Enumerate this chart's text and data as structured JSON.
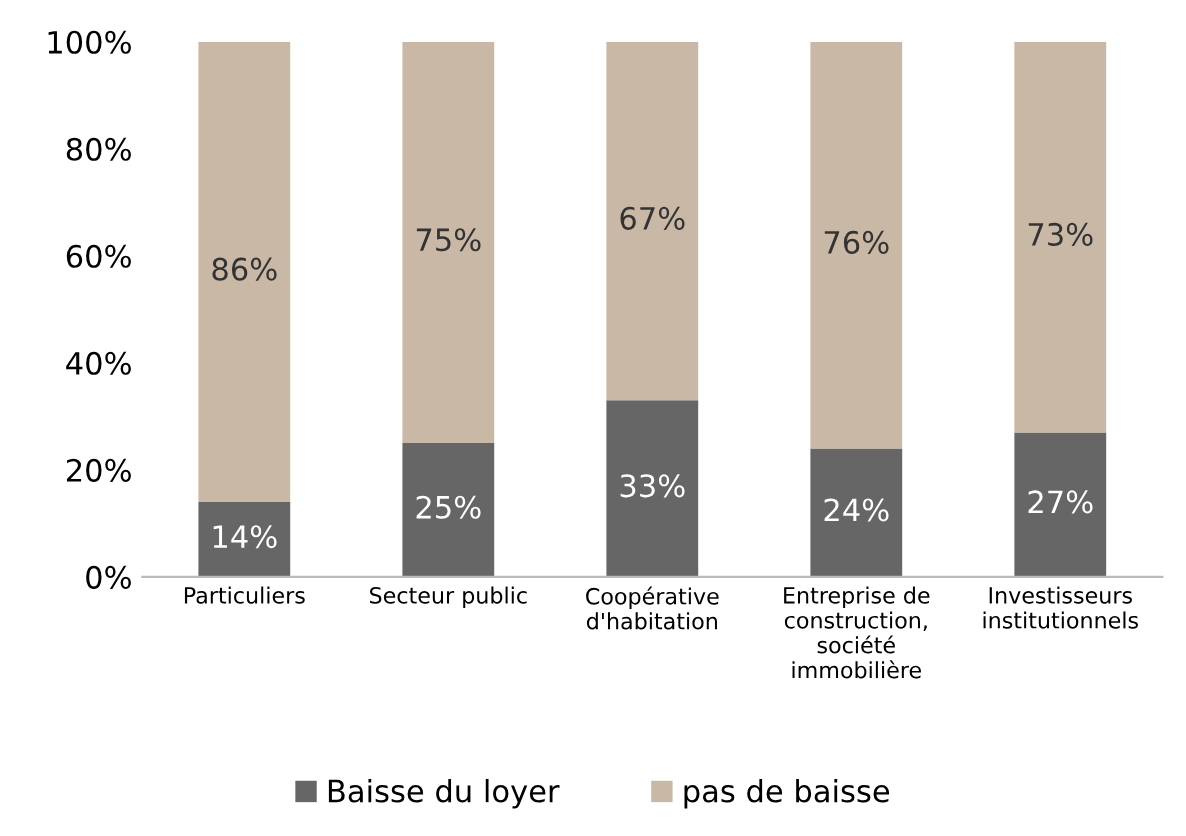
{
  "chart_data": {
    "type": "bar",
    "stacked": true,
    "categories": [
      "Particuliers",
      "Secteur public",
      "Coopérative\nd'habitation",
      "Entreprise de\nconstruction,\nsociété\nimmobilière",
      "Investisseurs\ninstitutionnels"
    ],
    "series": [
      {
        "name": "Baisse du loyer",
        "color": "#666666",
        "values": [
          14,
          25,
          33,
          24,
          27
        ],
        "value_labels": [
          "14%",
          "25%",
          "33%",
          "24%",
          "27%"
        ]
      },
      {
        "name": "pas de baisse",
        "color": "#c9b8a5",
        "values": [
          86,
          75,
          67,
          76,
          73
        ],
        "value_labels": [
          "86%",
          "75%",
          "67%",
          "76%",
          "73%"
        ]
      }
    ],
    "ylim": [
      0,
      100
    ],
    "yticks": [
      {
        "value": 0,
        "label": "0%"
      },
      {
        "value": 20,
        "label": "20%"
      },
      {
        "value": 40,
        "label": "40%"
      },
      {
        "value": 60,
        "label": "60%"
      },
      {
        "value": 80,
        "label": "80%"
      },
      {
        "value": 100,
        "label": "100%"
      }
    ],
    "grid": false,
    "legend": "bottom"
  }
}
